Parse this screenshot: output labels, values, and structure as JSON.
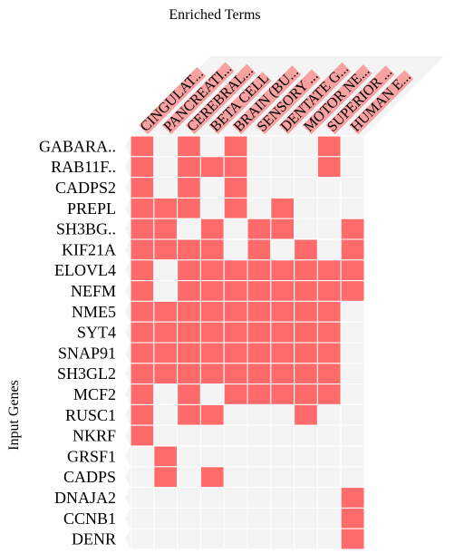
{
  "chart_data": {
    "type": "heatmap",
    "title": "Enriched Terms",
    "ylabel": "Input Genes",
    "x_categories": [
      "CINGULAT...",
      "PANCREATI...",
      "CEREBRAL...",
      "BETA CELL",
      "BRAIN (BU...",
      "SENSORY ...",
      "DENTATE G...",
      "MOTOR NE...",
      "SUPERIOR ...",
      "HUMAN E..."
    ],
    "y_categories": [
      "GABARA..",
      "RAB11F..",
      "CADPS2",
      "PREPL",
      "SH3BG..",
      "KIF21A",
      "ELOVL4",
      "NEFM",
      "NME5",
      "SYT4",
      "SNAP91",
      "SH3GL2",
      "MCF2",
      "RUSC1",
      "NKRF",
      "GRSF1",
      "CADPS",
      "DNAJA2",
      "CCNB1",
      "DENR"
    ],
    "matrix": [
      [
        1,
        0,
        1,
        0,
        1,
        0,
        0,
        0,
        1,
        0
      ],
      [
        1,
        0,
        1,
        1,
        1,
        0,
        0,
        0,
        1,
        0
      ],
      [
        1,
        0,
        1,
        0,
        1,
        0,
        0,
        0,
        0,
        0
      ],
      [
        1,
        1,
        1,
        0,
        1,
        0,
        1,
        0,
        0,
        0
      ],
      [
        1,
        1,
        0,
        1,
        0,
        1,
        1,
        0,
        0,
        1
      ],
      [
        1,
        1,
        1,
        1,
        0,
        1,
        0,
        1,
        0,
        1
      ],
      [
        1,
        0,
        1,
        1,
        1,
        1,
        1,
        1,
        1,
        1
      ],
      [
        1,
        0,
        1,
        1,
        1,
        1,
        1,
        1,
        1,
        1
      ],
      [
        1,
        1,
        1,
        1,
        1,
        1,
        1,
        1,
        1,
        0
      ],
      [
        1,
        1,
        1,
        1,
        1,
        1,
        1,
        1,
        1,
        0
      ],
      [
        1,
        1,
        1,
        1,
        1,
        1,
        1,
        1,
        1,
        0
      ],
      [
        1,
        1,
        1,
        1,
        1,
        1,
        1,
        1,
        1,
        0
      ],
      [
        1,
        0,
        1,
        0,
        1,
        1,
        1,
        1,
        1,
        0
      ],
      [
        1,
        0,
        1,
        1,
        0,
        0,
        0,
        1,
        0,
        0
      ],
      [
        1,
        0,
        0,
        0,
        0,
        0,
        0,
        0,
        0,
        0
      ],
      [
        0,
        1,
        0,
        0,
        0,
        0,
        0,
        0,
        0,
        0
      ],
      [
        0,
        1,
        0,
        1,
        0,
        0,
        0,
        0,
        0,
        0
      ],
      [
        0,
        0,
        0,
        0,
        0,
        0,
        0,
        0,
        0,
        1
      ],
      [
        0,
        0,
        0,
        0,
        0,
        0,
        0,
        0,
        0,
        1
      ],
      [
        0,
        0,
        0,
        0,
        0,
        0,
        0,
        0,
        0,
        1
      ]
    ],
    "colors": {
      "present": "#ff6b6b",
      "absent": "#f4f4f4",
      "label_highlight": "#f7a1a1",
      "grid_line": "#ffffff"
    },
    "grid": true
  }
}
